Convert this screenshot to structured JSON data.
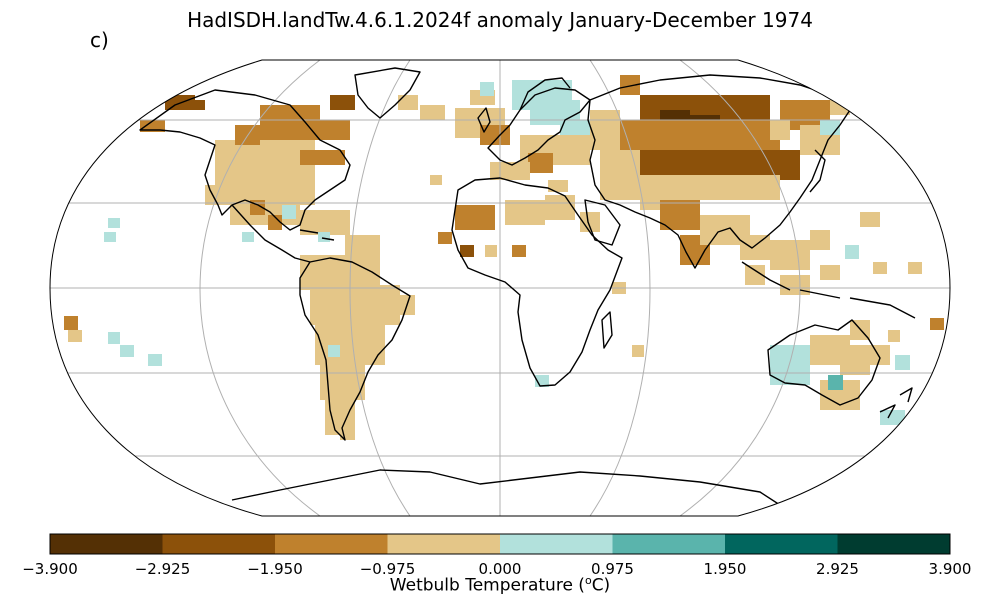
{
  "title": "HadISDH.landTw.4.6.1.2024f anomaly January-December 1974",
  "panel_label": "c)",
  "colorbar": {
    "label_prefix": "Wetbulb Temperature (",
    "label_sup": "o",
    "label_suffix": "C)",
    "ticks": [
      "−3.900",
      "−2.925",
      "−1.950",
      "−0.975",
      "0.000",
      "0.975",
      "1.950",
      "2.925",
      "3.900"
    ],
    "colors": [
      "#543005",
      "#8c510a",
      "#bf812d",
      "#e4c688",
      "#b2e1dc",
      "#5ab4ac",
      "#01665e",
      "#003c30"
    ]
  },
  "map": {
    "projection": "Robinson",
    "graticule": true,
    "lake_color": "#ffffff",
    "legend": "bottom colorbar"
  }
}
